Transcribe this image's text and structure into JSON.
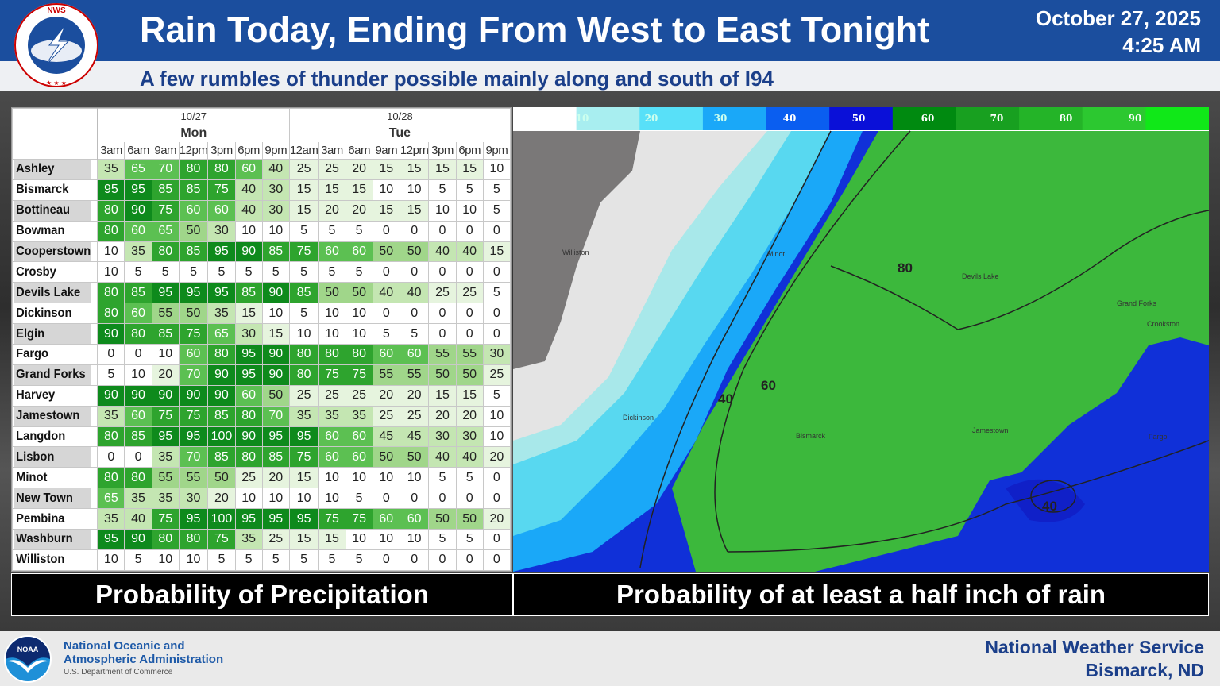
{
  "header": {
    "title": "Rain Today, Ending From West to East Tonight",
    "date": "October 27, 2025",
    "time": "4:25 AM",
    "subtitle": "A few rumbles of thunder possible mainly along and south of I94",
    "logo_text": "NATIONAL WEATHER SERVICE"
  },
  "table": {
    "days": [
      {
        "date": "10/27",
        "day": "Mon"
      },
      {
        "date": "10/28",
        "day": "Tue"
      }
    ],
    "times": [
      "3am",
      "6am",
      "9am",
      "12pm",
      "3pm",
      "6pm",
      "9pm",
      "12am",
      "3am",
      "6am",
      "9am",
      "12pm",
      "3pm",
      "6pm",
      "9pm"
    ],
    "rows": [
      {
        "name": "Ashley",
        "values": [
          35,
          65,
          70,
          80,
          80,
          60,
          40,
          25,
          25,
          20,
          15,
          15,
          15,
          15,
          10
        ]
      },
      {
        "name": "Bismarck",
        "values": [
          95,
          95,
          85,
          85,
          75,
          40,
          30,
          15,
          15,
          15,
          10,
          10,
          5,
          5,
          5
        ]
      },
      {
        "name": "Bottineau",
        "values": [
          80,
          90,
          75,
          60,
          60,
          40,
          30,
          15,
          20,
          20,
          15,
          15,
          10,
          10,
          5
        ]
      },
      {
        "name": "Bowman",
        "values": [
          80,
          60,
          65,
          50,
          30,
          10,
          10,
          5,
          5,
          5,
          0,
          0,
          0,
          0,
          0
        ]
      },
      {
        "name": "Cooperstown",
        "values": [
          10,
          35,
          80,
          85,
          95,
          90,
          85,
          75,
          60,
          60,
          50,
          50,
          40,
          40,
          15
        ]
      },
      {
        "name": "Crosby",
        "values": [
          10,
          5,
          5,
          5,
          5,
          5,
          5,
          5,
          5,
          5,
          0,
          0,
          0,
          0,
          0
        ]
      },
      {
        "name": "Devils Lake",
        "values": [
          80,
          85,
          95,
          95,
          95,
          85,
          90,
          85,
          50,
          50,
          40,
          40,
          25,
          25,
          5
        ]
      },
      {
        "name": "Dickinson",
        "values": [
          80,
          60,
          55,
          50,
          35,
          15,
          10,
          5,
          10,
          10,
          0,
          0,
          0,
          0,
          0
        ]
      },
      {
        "name": "Elgin",
        "values": [
          90,
          80,
          85,
          75,
          65,
          30,
          15,
          10,
          10,
          10,
          5,
          5,
          0,
          0,
          0
        ]
      },
      {
        "name": "Fargo",
        "values": [
          0,
          0,
          10,
          60,
          80,
          95,
          90,
          80,
          80,
          80,
          60,
          60,
          55,
          55,
          30
        ]
      },
      {
        "name": "Grand Forks",
        "values": [
          5,
          10,
          20,
          70,
          90,
          95,
          90,
          80,
          75,
          75,
          55,
          55,
          50,
          50,
          25
        ]
      },
      {
        "name": "Harvey",
        "values": [
          90,
          90,
          90,
          90,
          90,
          60,
          50,
          25,
          25,
          25,
          20,
          20,
          15,
          15,
          5
        ]
      },
      {
        "name": "Jamestown",
        "values": [
          35,
          60,
          75,
          75,
          85,
          80,
          70,
          35,
          35,
          35,
          25,
          25,
          20,
          20,
          10
        ]
      },
      {
        "name": "Langdon",
        "values": [
          80,
          85,
          95,
          95,
          100,
          90,
          95,
          95,
          60,
          60,
          45,
          45,
          30,
          30,
          10
        ]
      },
      {
        "name": "Lisbon",
        "values": [
          0,
          0,
          35,
          70,
          85,
          80,
          85,
          75,
          60,
          60,
          50,
          50,
          40,
          40,
          20
        ]
      },
      {
        "name": "Minot",
        "values": [
          80,
          80,
          55,
          55,
          50,
          25,
          20,
          15,
          10,
          10,
          10,
          10,
          5,
          5,
          0
        ]
      },
      {
        "name": "New Town",
        "values": [
          65,
          35,
          35,
          30,
          20,
          10,
          10,
          10,
          10,
          5,
          0,
          0,
          0,
          0,
          0
        ]
      },
      {
        "name": "Pembina",
        "values": [
          35,
          40,
          75,
          95,
          100,
          95,
          95,
          95,
          75,
          75,
          60,
          60,
          50,
          50,
          20
        ]
      },
      {
        "name": "Washburn",
        "values": [
          95,
          90,
          80,
          80,
          75,
          35,
          25,
          15,
          15,
          10,
          10,
          10,
          5,
          5,
          0
        ]
      },
      {
        "name": "Williston",
        "values": [
          10,
          5,
          10,
          10,
          5,
          5,
          5,
          5,
          5,
          5,
          0,
          0,
          0,
          0,
          0
        ]
      }
    ]
  },
  "map": {
    "legend_ticks": [
      "10",
      "20",
      "30",
      "40",
      "50",
      "60",
      "70",
      "80",
      "90"
    ],
    "legend_colors": [
      "#ffffff",
      "#a8eef0",
      "#58e0f8",
      "#1aa8f8",
      "#0a5ef0",
      "#0a10d8",
      "#008a10",
      "#18a020",
      "#24b428",
      "#2cc830",
      "#10e818"
    ],
    "cities": [
      "Williston",
      "Minot",
      "Devils Lake",
      "Grand Forks",
      "Crookston",
      "Dickinson",
      "Bismarck",
      "Jamestown",
      "Fargo"
    ],
    "contour_labels": [
      "80",
      "60",
      "40",
      "40"
    ]
  },
  "captions": {
    "left": "Probability of Precipitation",
    "right": "Probability of at least a half inch of rain"
  },
  "footer": {
    "noaa_abbr": "NOAA",
    "noaa_line1": "National Oceanic and",
    "noaa_line2": "Atmospheric Administration",
    "noaa_sub": "U.S. Department of Commerce",
    "nws_line1": "National Weather Service",
    "nws_line2": "Bismarck, ND"
  }
}
